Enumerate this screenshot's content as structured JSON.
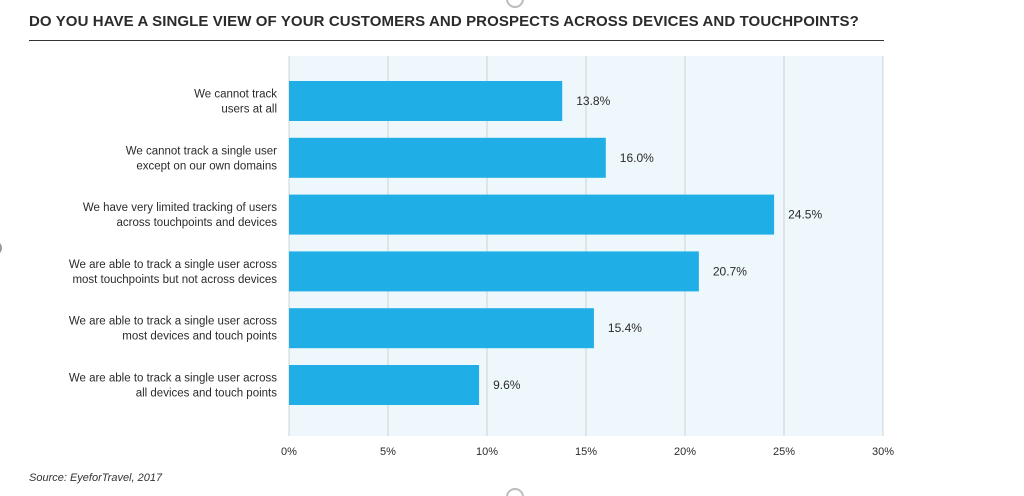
{
  "chart_data": {
    "type": "bar",
    "orientation": "horizontal",
    "title": "DO YOU HAVE A SINGLE VIEW OF YOUR CUSTOMERS AND PROSPECTS ACROSS DEVICES AND TOUCHPOINTS?",
    "categories": [
      [
        "We cannot track",
        "users at all"
      ],
      [
        "We cannot track a single user",
        "except on our own domains"
      ],
      [
        "We have very limited tracking of users",
        "across touchpoints and devices"
      ],
      [
        "We are able to track a single user across",
        "most touchpoints but not across devices"
      ],
      [
        "We are able to track a single user across",
        "most devices and touch points"
      ],
      [
        "We are able to track a single user across",
        "all devices and touch points"
      ]
    ],
    "values": [
      13.8,
      16.0,
      24.5,
      20.7,
      15.4,
      9.6
    ],
    "value_labels": [
      "13.8%",
      "16.0%",
      "24.5%",
      "20.7%",
      "15.4%",
      "9.6%"
    ],
    "xlim": [
      0,
      30
    ],
    "xticks": [
      0,
      5,
      10,
      15,
      20,
      25,
      30
    ],
    "xtick_labels": [
      "0%",
      "5%",
      "10%",
      "15%",
      "20%",
      "25%",
      "30%"
    ],
    "grid": "vertical",
    "colors": {
      "bar": "#1fafe6",
      "plot_background": "#eef7fb",
      "grid": "#cfd3d6",
      "text": "#2b2b2b"
    }
  },
  "source": "Source: EyeforTravel, 2017"
}
